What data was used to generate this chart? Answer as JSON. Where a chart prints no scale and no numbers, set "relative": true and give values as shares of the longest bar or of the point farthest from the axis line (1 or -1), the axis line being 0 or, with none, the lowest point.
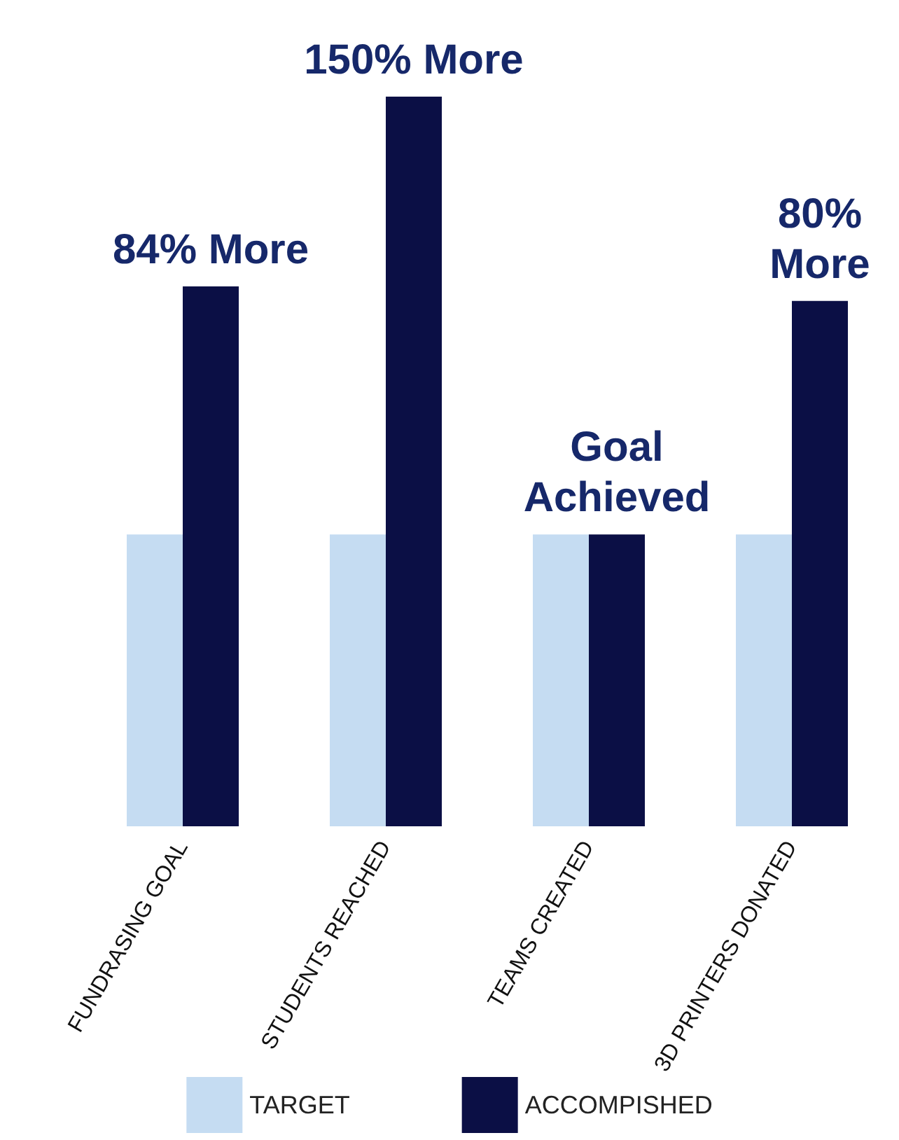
{
  "chart_data": {
    "type": "bar",
    "relative": true,
    "categories": [
      "FUNDRASING GOAL",
      "STUDENTS REACHED",
      "TEAMS CREATED",
      "3D PRINTERS DONATED"
    ],
    "series": [
      {
        "name": "TARGET",
        "color": "#c5dcf2",
        "values": [
          0.4,
          0.4,
          0.4,
          0.4
        ]
      },
      {
        "name": "ACCOMPISHED",
        "color": "#0b0f45",
        "values": [
          0.74,
          1,
          0.4,
          0.72
        ]
      }
    ],
    "annotations": [
      {
        "text": "84% More",
        "x": "FUNDRASING GOAL",
        "y": 0.74
      },
      {
        "text": "150% More",
        "x": "STUDENTS REACHED",
        "y": 1
      },
      {
        "text": "Goal\nAchieved",
        "x": "TEAMS CREATED",
        "y": 0.4
      },
      {
        "text": "80%\nMore",
        "x": "3D PRINTERS DONATED",
        "y": 0.72
      }
    ],
    "legend": "bottom",
    "grid": false
  }
}
